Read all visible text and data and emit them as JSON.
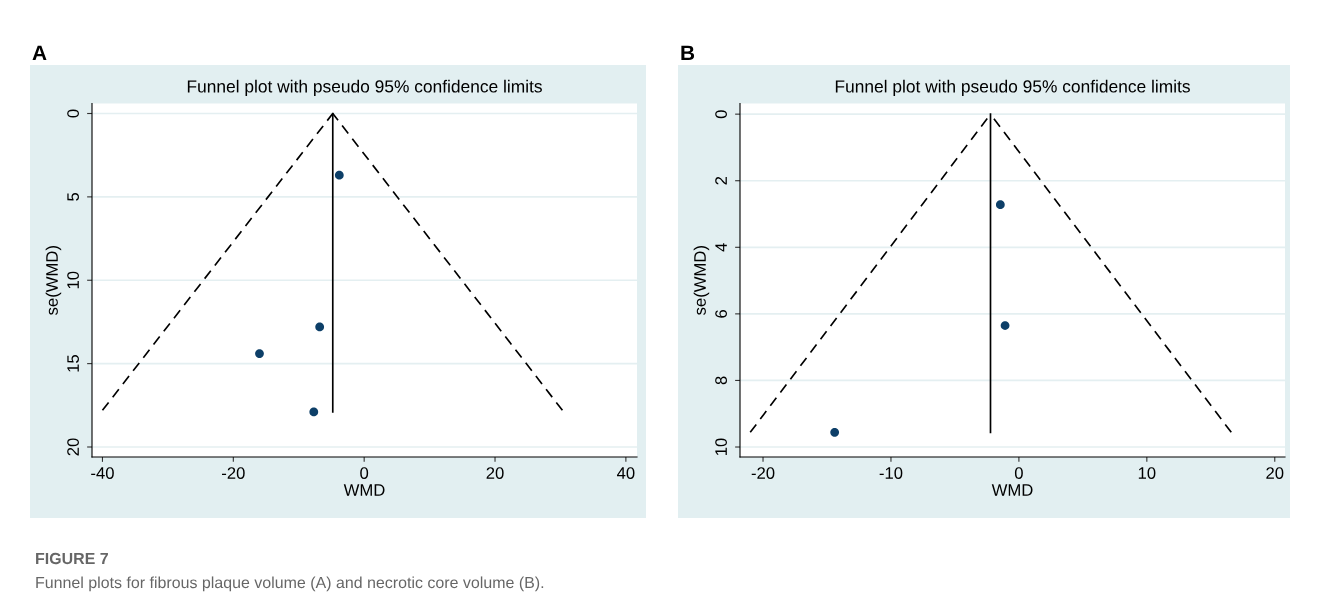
{
  "chart_data": [
    {
      "type": "scatter",
      "title": "Funnel plot with pseudo 95% confidence limits",
      "xlabel": "WMD",
      "ylabel": "se(WMD)",
      "xlim": [
        -41.6,
        41.7
      ],
      "xticks": [
        -40,
        -20,
        0,
        20,
        40
      ],
      "ylim": [
        20.6,
        -0.6
      ],
      "yticks": [
        0,
        5,
        10,
        15,
        20
      ],
      "grid": "y",
      "annotations": [
        "A",
        "FIGURE 7",
        "Funnel plots for fibrous plaque volume (A) and necrotic core volume (B)."
      ],
      "series": [
        {
          "color": "#0d3f68",
          "marker": "circle",
          "x": [
            -3.8,
            -6.8,
            -16.0,
            -7.7
          ],
          "values": [
            3.7,
            12.8,
            14.4,
            17.9
          ]
        },
        {
          "type": "line",
          "marker": "none",
          "color": "#000000",
          "line_style": "solid",
          "x": [
            -4.8,
            -4.8
          ],
          "values": [
            0,
            17.9
          ]
        },
        {
          "type": "line",
          "marker": "none",
          "color": "#000000",
          "line_style": "dashed",
          "x": [
            -40.0,
            -4.8
          ],
          "values": [
            17.8,
            0
          ]
        },
        {
          "type": "line",
          "marker": "none",
          "color": "#000000",
          "line_style": "dashed",
          "x": [
            30.3,
            -4.8
          ],
          "values": [
            17.8,
            0
          ]
        }
      ]
    },
    {
      "type": "scatter",
      "title": "Funnel plot with pseudo 95% confidence limits",
      "xlabel": "WMD",
      "ylabel": "se(WMD)",
      "xlim": [
        -21.8,
        20.8
      ],
      "xticks": [
        -20,
        -10,
        0,
        10,
        20
      ],
      "ylim": [
        10.3,
        -0.32
      ],
      "yticks": [
        0,
        2,
        4,
        6,
        8,
        10
      ],
      "grid": "y",
      "annotations": [
        "B"
      ],
      "series": [
        {
          "color": "#0d3f68",
          "marker": "circle",
          "x": [
            -1.45,
            -1.08,
            -14.4
          ],
          "values": [
            2.72,
            6.35,
            9.56
          ]
        },
        {
          "type": "line",
          "marker": "none",
          "color": "#000000",
          "line_style": "solid",
          "x": [
            -2.22,
            -2.22
          ],
          "values": [
            0,
            9.56
          ]
        },
        {
          "type": "line",
          "marker": "none",
          "color": "#000000",
          "line_style": "dashed",
          "x": [
            -21.0,
            -2.22
          ],
          "values": [
            9.56,
            0
          ]
        },
        {
          "type": "line",
          "marker": "none",
          "color": "#000000",
          "line_style": "dashed",
          "x": [
            16.6,
            -2.22
          ],
          "values": [
            9.56,
            0
          ]
        }
      ]
    }
  ]
}
